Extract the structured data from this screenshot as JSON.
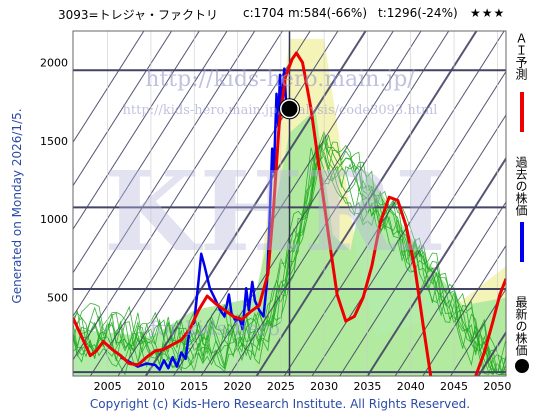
{
  "header": {
    "code_name": "3093=トレジャ・ファクトリ",
    "current": "c:1704",
    "m_value": "m:584(-66%)",
    "t_value": "t:1296(-24%)",
    "stars": "★★★"
  },
  "side_label": "Generated on Monday 2026/1/5.",
  "footer": "Copyright (c) Kids-Hero Research Institute. All Rights Reserved.",
  "watermark": {
    "url_main": "http://kids-hero.main.jp/",
    "url_sub": "http://kids-hero.main.jp/analysis/code3093.html",
    "big": "KHRI",
    "bottom": "for kids-hero"
  },
  "legend": {
    "ai_forecast": "ＡＩ予測",
    "past_price": "過去の株価",
    "latest_price": "最新の株価"
  },
  "colors": {
    "ai_forecast": "#ee0000",
    "past_price": "#0000ee",
    "latest_price": "#000000",
    "simulations": "#22aa22",
    "band_fill": "#f3f3b0",
    "green_fill": "#a6e89a",
    "grid": "#444466"
  },
  "chart_data": {
    "type": "line",
    "xlim": [
      2001,
      2051
    ],
    "ylim": [
      0,
      2200
    ],
    "x_ticks": [
      2005,
      2010,
      2015,
      2020,
      2025,
      2030,
      2035,
      2040,
      2045,
      2050
    ],
    "y_ticks": [
      500,
      1000,
      1500,
      2000
    ],
    "horizontal_levels": [
      1950,
      1075,
      555,
      25
    ],
    "current_point": {
      "x": 2026.0,
      "y": 1704
    },
    "series": [
      {
        "role": "past",
        "points": [
          [
            2006.5,
            120
          ],
          [
            2007.5,
            90
          ],
          [
            2008.5,
            60
          ],
          [
            2009.5,
            80
          ],
          [
            2010.5,
            70
          ],
          [
            2011,
            40
          ],
          [
            2011.5,
            100
          ],
          [
            2012,
            50
          ],
          [
            2012.5,
            120
          ],
          [
            2013,
            60
          ],
          [
            2013.5,
            150
          ],
          [
            2014,
            110
          ],
          [
            2014.5,
            310
          ],
          [
            2015,
            340
          ],
          [
            2015.5,
            610
          ],
          [
            2015.8,
            780
          ],
          [
            2016.2,
            700
          ],
          [
            2016.8,
            560
          ],
          [
            2017.5,
            480
          ],
          [
            2018,
            420
          ],
          [
            2018.5,
            380
          ],
          [
            2019,
            520
          ],
          [
            2019.3,
            400
          ],
          [
            2019.8,
            350
          ],
          [
            2020.2,
            370
          ],
          [
            2020.6,
            300
          ],
          [
            2021,
            560
          ],
          [
            2021.3,
            420
          ],
          [
            2021.7,
            600
          ],
          [
            2022,
            480
          ],
          [
            2022.5,
            420
          ],
          [
            2023,
            380
          ],
          [
            2023.4,
            600
          ],
          [
            2023.7,
            1000
          ],
          [
            2024,
            1450
          ],
          [
            2024.2,
            1300
          ],
          [
            2024.5,
            1800
          ],
          [
            2024.7,
            1600
          ],
          [
            2024.9,
            1920
          ],
          [
            2025.1,
            1700
          ],
          [
            2025.4,
            1960
          ],
          [
            2025.6,
            1750
          ],
          [
            2026,
            1704
          ]
        ]
      },
      {
        "role": "ai_forecast",
        "points": [
          [
            2001,
            370
          ],
          [
            2002,
            250
          ],
          [
            2003,
            130
          ],
          [
            2003.7,
            160
          ],
          [
            2004.5,
            220
          ],
          [
            2005.5,
            170
          ],
          [
            2006.5,
            130
          ],
          [
            2007.5,
            80
          ],
          [
            2008.5,
            70
          ],
          [
            2009.5,
            120
          ],
          [
            2010.5,
            160
          ],
          [
            2011.5,
            170
          ],
          [
            2012.5,
            200
          ],
          [
            2013.5,
            230
          ],
          [
            2014.5,
            300
          ],
          [
            2015.5,
            420
          ],
          [
            2016.5,
            510
          ],
          [
            2017.5,
            460
          ],
          [
            2018.5,
            420
          ],
          [
            2019.5,
            380
          ],
          [
            2020.5,
            360
          ],
          [
            2021.5,
            410
          ],
          [
            2022.5,
            450
          ],
          [
            2023.5,
            650
          ],
          [
            2024.2,
            1100
          ],
          [
            2024.8,
            1600
          ],
          [
            2025.5,
            1900
          ],
          [
            2026.3,
            2020
          ],
          [
            2026.8,
            2060
          ],
          [
            2027.5,
            2000
          ],
          [
            2028.5,
            1700
          ],
          [
            2029.5,
            1300
          ],
          [
            2030.5,
            900
          ],
          [
            2031.5,
            520
          ],
          [
            2032.5,
            350
          ],
          [
            2033.5,
            380
          ],
          [
            2034.5,
            500
          ],
          [
            2035.5,
            700
          ],
          [
            2036.5,
            980
          ],
          [
            2037.5,
            1140
          ],
          [
            2038.5,
            1120
          ],
          [
            2039.5,
            950
          ],
          [
            2040.5,
            680
          ],
          [
            2041.5,
            300
          ],
          [
            2042.3,
            0
          ]
        ]
      },
      {
        "role": "ai_forecast_tail",
        "points": [
          [
            2047.5,
            0
          ],
          [
            2048.5,
            150
          ],
          [
            2049.5,
            350
          ],
          [
            2050.3,
            520
          ],
          [
            2051,
            620
          ]
        ]
      }
    ]
  }
}
